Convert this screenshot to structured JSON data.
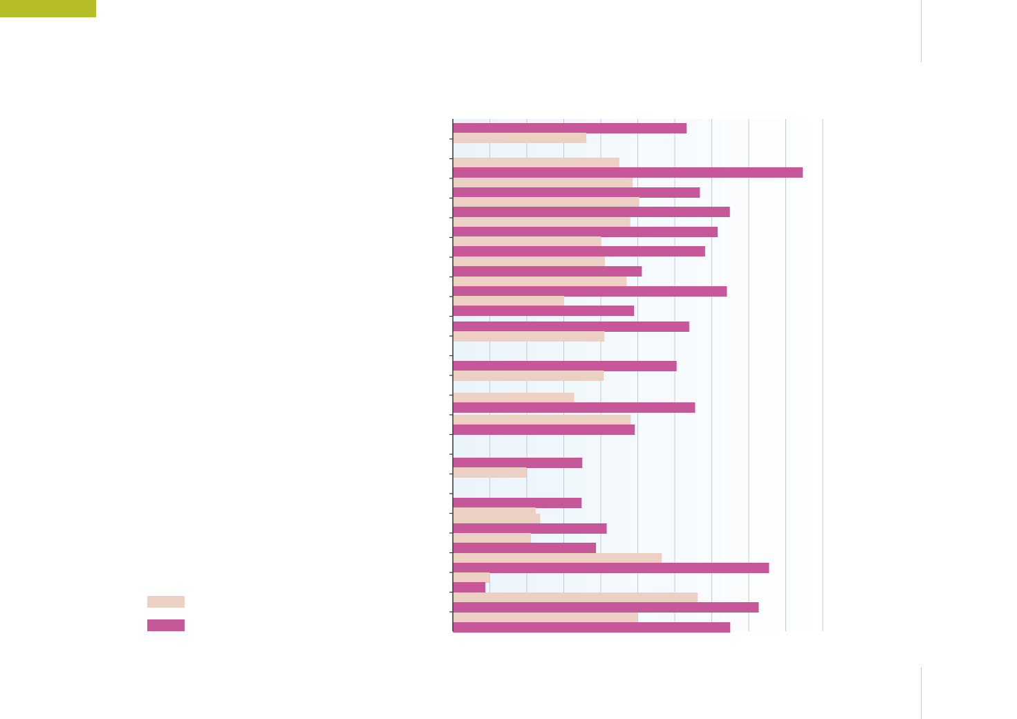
{
  "page": {
    "accent_color": "#b5bd27",
    "rule_color": "#c9c9c9"
  },
  "chart_data": {
    "type": "bar",
    "orientation": "horizontal",
    "title": "",
    "xlabel": "",
    "ylabel": "",
    "categories": [
      "",
      "",
      "",
      "",
      "",
      "",
      "",
      "",
      "",
      "",
      "",
      "",
      "",
      "",
      "",
      "",
      "",
      "",
      "",
      "",
      "",
      "",
      "",
      "",
      "",
      ""
    ],
    "series": [
      {
        "color": "#ecd0c3",
        "values": [
          36.1,
          45.0,
          48.6,
          50.4,
          48.0,
          40.0,
          41.1,
          47.0,
          30.1,
          41.0,
          40.8,
          32.8,
          48.1,
          19.9,
          22.4,
          23.6,
          21.1,
          56.5,
          10.0,
          66.2,
          50.0,
          0,
          0,
          0,
          0,
          0
        ]
      },
      {
        "color": "#c6589a",
        "values": [
          63.2,
          94.6,
          66.8,
          74.9,
          71.6,
          68.2,
          51.1,
          74.1,
          49.0,
          63.9,
          60.5,
          65.5,
          49.2,
          35.0,
          34.8,
          41.6,
          38.7,
          85.5,
          8.8,
          82.7,
          75.0,
          0,
          0,
          0,
          0,
          0
        ]
      }
    ],
    "xlim": [
      0,
      100
    ],
    "x_gridlines": [
      0,
      10,
      20,
      30,
      40,
      50,
      60,
      70,
      80,
      90,
      100
    ],
    "grid": true,
    "legend": {
      "position": "bottom-left",
      "entries": [
        {
          "label": "",
          "color": "#ecd0c3"
        },
        {
          "label": "",
          "color": "#c6589a"
        }
      ]
    },
    "plot_background": [
      "#eaf4fb",
      "#ffffff"
    ]
  }
}
